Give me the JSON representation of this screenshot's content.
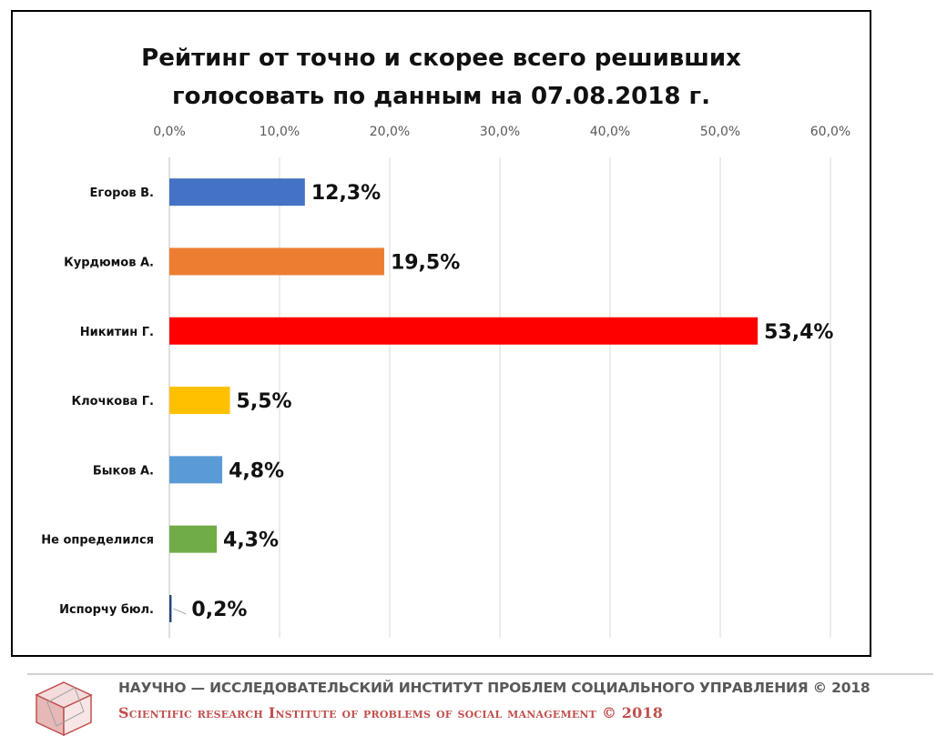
{
  "chart_data": {
    "type": "bar",
    "orientation": "horizontal",
    "title": "Рейтинг от точно и скорее всего решивших голосовать по данным на 07.08.2018 г.",
    "title_lines": [
      "Рейтинг от точно и скорее всего решивших",
      "голосовать по данным на 07.08.2018 г."
    ],
    "categories": [
      "Егоров В.",
      "Курдюмов А.",
      "Никитин Г.",
      "Клочкова Г.",
      "Быков А.",
      "Не определился",
      "Испорчу бюл."
    ],
    "values": [
      12.3,
      19.5,
      53.4,
      5.5,
      4.8,
      4.3,
      0.2
    ],
    "data_labels": [
      "12,3%",
      "19,5%",
      "53,4%",
      "5,5%",
      "4,8%",
      "4,3%",
      "0,2%"
    ],
    "colors": [
      "#4472c4",
      "#ed7d31",
      "#ff0000",
      "#ffc000",
      "#5b9bd5",
      "#70ad47",
      "#264478"
    ],
    "xlim": [
      0,
      60
    ],
    "x_ticks": [
      "0,0%",
      "10,0%",
      "20,0%",
      "30,0%",
      "40,0%",
      "50,0%",
      "60,0%"
    ],
    "x_axis_position": "top",
    "grid": true,
    "legend": "none"
  },
  "footer": {
    "line_ru": "НАУЧНО — ИССЛЕДОВАТЕЛЬСКИЙ ИНСТИТУТ ПРОБЛЕМ СОЦИАЛЬНОГО УПРАВЛЕНИЯ © 2018",
    "line_en": "Scientific research Institute of problems of social management © 2018",
    "logo_icon": "cube-logo-icon"
  }
}
